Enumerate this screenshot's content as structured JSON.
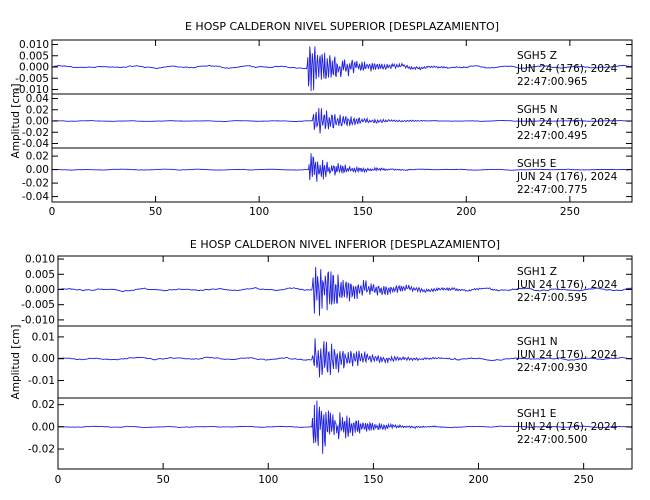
{
  "chart_data": [
    {
      "type": "line",
      "title": "E HOSP CALDERON NIVEL SUPERIOR [DESPLAZAMIENTO]",
      "ylabel": "Amplitud [cm]",
      "xlim": [
        0,
        280
      ],
      "x_ticks": [
        "0",
        "50",
        "100",
        "150",
        "200",
        "250"
      ],
      "color": "#1f1fe0",
      "channels": [
        {
          "name": "SGH5 Z",
          "labels": [
            "SGH5   Z",
            "JUN 24 (176), 2024",
            "22:47:00.965"
          ],
          "ylim": [
            -0.012,
            0.012
          ],
          "y_ticks": [
            "0.010",
            "0.005",
            "0.000",
            "-0.005",
            "-0.010"
          ],
          "y_tick_values": [
            0.01,
            0.005,
            0.0,
            -0.005,
            -0.01
          ],
          "arrival_s": 123,
          "peak": 0.011,
          "noise": 0.0005,
          "decay": 18,
          "period": 1.2
        },
        {
          "name": "SGH5 N",
          "labels": [
            "SGH5   N",
            "JUN 24 (176), 2024",
            "22:47:00.495"
          ],
          "ylim": [
            -0.048,
            0.048
          ],
          "y_ticks": [
            "0.04",
            "0.02",
            "0.00",
            "-0.02",
            "-0.04"
          ],
          "y_tick_values": [
            0.04,
            0.02,
            0.0,
            -0.02,
            -0.04
          ],
          "arrival_s": 126,
          "peak": 0.03,
          "noise": 0.0006,
          "decay": 14,
          "period": 1.3
        },
        {
          "name": "SGH5 E",
          "labels": [
            "SGH5   E",
            "JUN 24 (176), 2024",
            "22:47:00.775"
          ],
          "ylim": [
            -0.048,
            0.032
          ],
          "y_ticks": [
            "0.02",
            "0.00",
            "-0.02",
            "-0.04"
          ],
          "y_tick_values": [
            0.02,
            0.0,
            -0.02,
            -0.04
          ],
          "arrival_s": 124,
          "peak": 0.03,
          "noise": 0.0006,
          "decay": 12,
          "period": 1.1
        }
      ]
    },
    {
      "type": "line",
      "title": "E HOSP CALDERON NIVEL INFERIOR [DESPLAZAMIENTO]",
      "ylabel": "Amplitud [cm]",
      "xlim": [
        0,
        273
      ],
      "x_ticks": [
        "0",
        "50",
        "100",
        "150",
        "200",
        "250"
      ],
      "color": "#1f1fe0",
      "channels": [
        {
          "name": "SGH1 Z",
          "labels": [
            "SGH1   Z",
            "JUN 24 (176), 2024",
            "22:47:00.595"
          ],
          "ylim": [
            -0.012,
            0.011
          ],
          "y_ticks": [
            "0.010",
            "0.005",
            "0.000",
            "-0.005",
            "-0.010"
          ],
          "y_tick_values": [
            0.01,
            0.005,
            0.0,
            -0.005,
            -0.01
          ],
          "arrival_s": 121,
          "peak": 0.0095,
          "noise": 0.0004,
          "decay": 20,
          "period": 1.2
        },
        {
          "name": "SGH1 N",
          "labels": [
            "SGH1   N",
            "JUN 24 (176), 2024",
            "22:47:00.930"
          ],
          "ylim": [
            -0.018,
            0.015
          ],
          "y_ticks": [
            "0.01",
            "0.00",
            "-0.01"
          ],
          "y_tick_values": [
            0.01,
            0.0,
            -0.01
          ],
          "arrival_s": 121,
          "peak": 0.012,
          "noise": 0.0005,
          "decay": 16,
          "period": 1.3
        },
        {
          "name": "SGH1 E",
          "labels": [
            "SGH1   E",
            "JUN 24 (176), 2024",
            "22:47:00.500"
          ],
          "ylim": [
            -0.038,
            0.026
          ],
          "y_ticks": [
            "0.02",
            "0.00",
            "-0.02"
          ],
          "y_tick_values": [
            0.02,
            0.0,
            -0.02
          ],
          "arrival_s": 121,
          "peak": 0.033,
          "noise": 0.0005,
          "decay": 13,
          "period": 1.1
        }
      ]
    }
  ]
}
